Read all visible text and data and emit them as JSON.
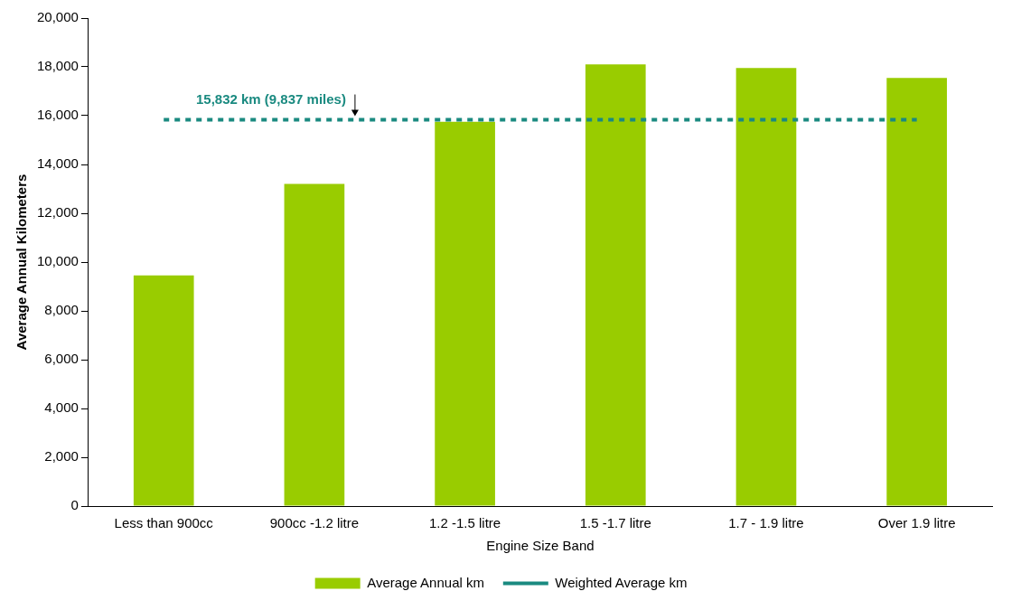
{
  "chart_data": {
    "type": "bar",
    "xlabel": "Engine Size Band",
    "ylabel": "Average Annual Kilometers",
    "categories": [
      "Less than 900cc",
      "900cc -1.2 litre",
      "1.2 -1.5 litre",
      "1.5 -1.7 litre",
      "1.7 - 1.9 litre",
      "Over 1.9 litre"
    ],
    "series": [
      {
        "name": "Average Annual km",
        "color": "#99cc00",
        "values": [
          9450,
          13200,
          15750,
          18100,
          17950,
          17550
        ]
      },
      {
        "name": "Weighted Average km",
        "type": "line",
        "color": "#1a8a80",
        "line_style": "dashed",
        "marker": "none",
        "values": [
          15832,
          15832,
          15832,
          15832,
          15832,
          15832
        ]
      }
    ],
    "annotations": [
      {
        "text": "15,832 km (9,837 miles)",
        "x": "900cc -1.2 litre",
        "y": 15832
      }
    ],
    "ylim": [
      0,
      20000
    ],
    "yticks": [
      0,
      {
        "value": 2000,
        "label": "2,000"
      },
      {
        "value": 4000,
        "label": "4,000"
      },
      {
        "value": 6000,
        "label": "6,000"
      },
      {
        "value": 8000,
        "label": "8,000"
      },
      {
        "value": 10000,
        "label": "10,000"
      },
      {
        "value": 12000,
        "label": "12,000"
      },
      {
        "value": 14000,
        "label": "14,000"
      },
      {
        "value": 16000,
        "label": "16,000"
      },
      {
        "value": 18000,
        "label": "18,000"
      },
      {
        "value": 20000,
        "label": "20,000"
      }
    ],
    "grid": false,
    "legend": "bottom"
  }
}
